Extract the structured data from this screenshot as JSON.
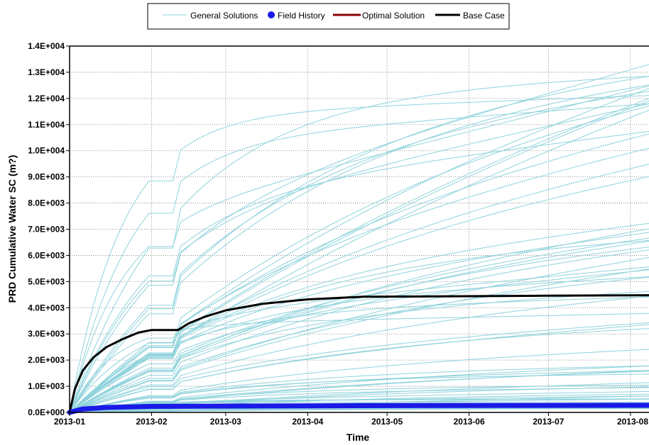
{
  "legend": {
    "placement": "top-center",
    "items": [
      {
        "label": "General Solutions",
        "color": "#8fd3dc",
        "style": "thin-line"
      },
      {
        "label": "Field History",
        "color": "#1a1ae6",
        "style": "dot"
      },
      {
        "label": "Optimal Solution",
        "color": "#8b0000",
        "style": "thick-line"
      },
      {
        "label": "Base Case",
        "color": "#000000",
        "style": "thick-line"
      }
    ]
  },
  "chart_data": {
    "type": "line",
    "title": "",
    "xlabel": "Time",
    "ylabel": "PRD Cumulative Water SC (m?)",
    "x_ticks": [
      "2013-01",
      "2013-02",
      "2013-03",
      "2013-04",
      "2013-05",
      "2013-06",
      "2013-07",
      "2013-08"
    ],
    "y_ticks": [
      "0.0E+000",
      "1.0E+003",
      "2.0E+003",
      "3.0E+003",
      "4.0E+003",
      "5.0E+003",
      "6.0E+003",
      "7.0E+003",
      "8.0E+003",
      "9.0E+003",
      "1.0E+004",
      "1.1E+004",
      "1.2E+004",
      "1.3E+004",
      "1.4E+004"
    ],
    "xlim": [
      "2013-01-01",
      "2013-08-08"
    ],
    "ylim": [
      0,
      14000
    ],
    "grid": true,
    "series": [
      {
        "name": "Base Case",
        "color": "#000000",
        "x": [
          "2013-01-01",
          "2013-01-03",
          "2013-01-06",
          "2013-01-10",
          "2013-01-15",
          "2013-01-21",
          "2013-01-27",
          "2013-02-01",
          "2013-02-11",
          "2013-02-15",
          "2013-02-21",
          "2013-03-01",
          "2013-03-15",
          "2013-04-01",
          "2013-04-22",
          "2013-05-15",
          "2013-06-01",
          "2013-07-01",
          "2013-08-08"
        ],
        "y": [
          0,
          900,
          1600,
          2100,
          2500,
          2800,
          3050,
          3150,
          3150,
          3400,
          3650,
          3900,
          4150,
          4320,
          4420,
          4430,
          4440,
          4460,
          4480
        ]
      },
      {
        "name": "Field History",
        "color": "#1a1ae6",
        "x": [
          "2013-01-01",
          "2013-01-06",
          "2013-01-15",
          "2013-02-01",
          "2013-03-01",
          "2013-04-01",
          "2013-05-01",
          "2013-06-01",
          "2013-07-01",
          "2013-08-08"
        ],
        "y": [
          0,
          130,
          190,
          230,
          240,
          250,
          260,
          265,
          268,
          270
        ]
      }
    ]
  }
}
